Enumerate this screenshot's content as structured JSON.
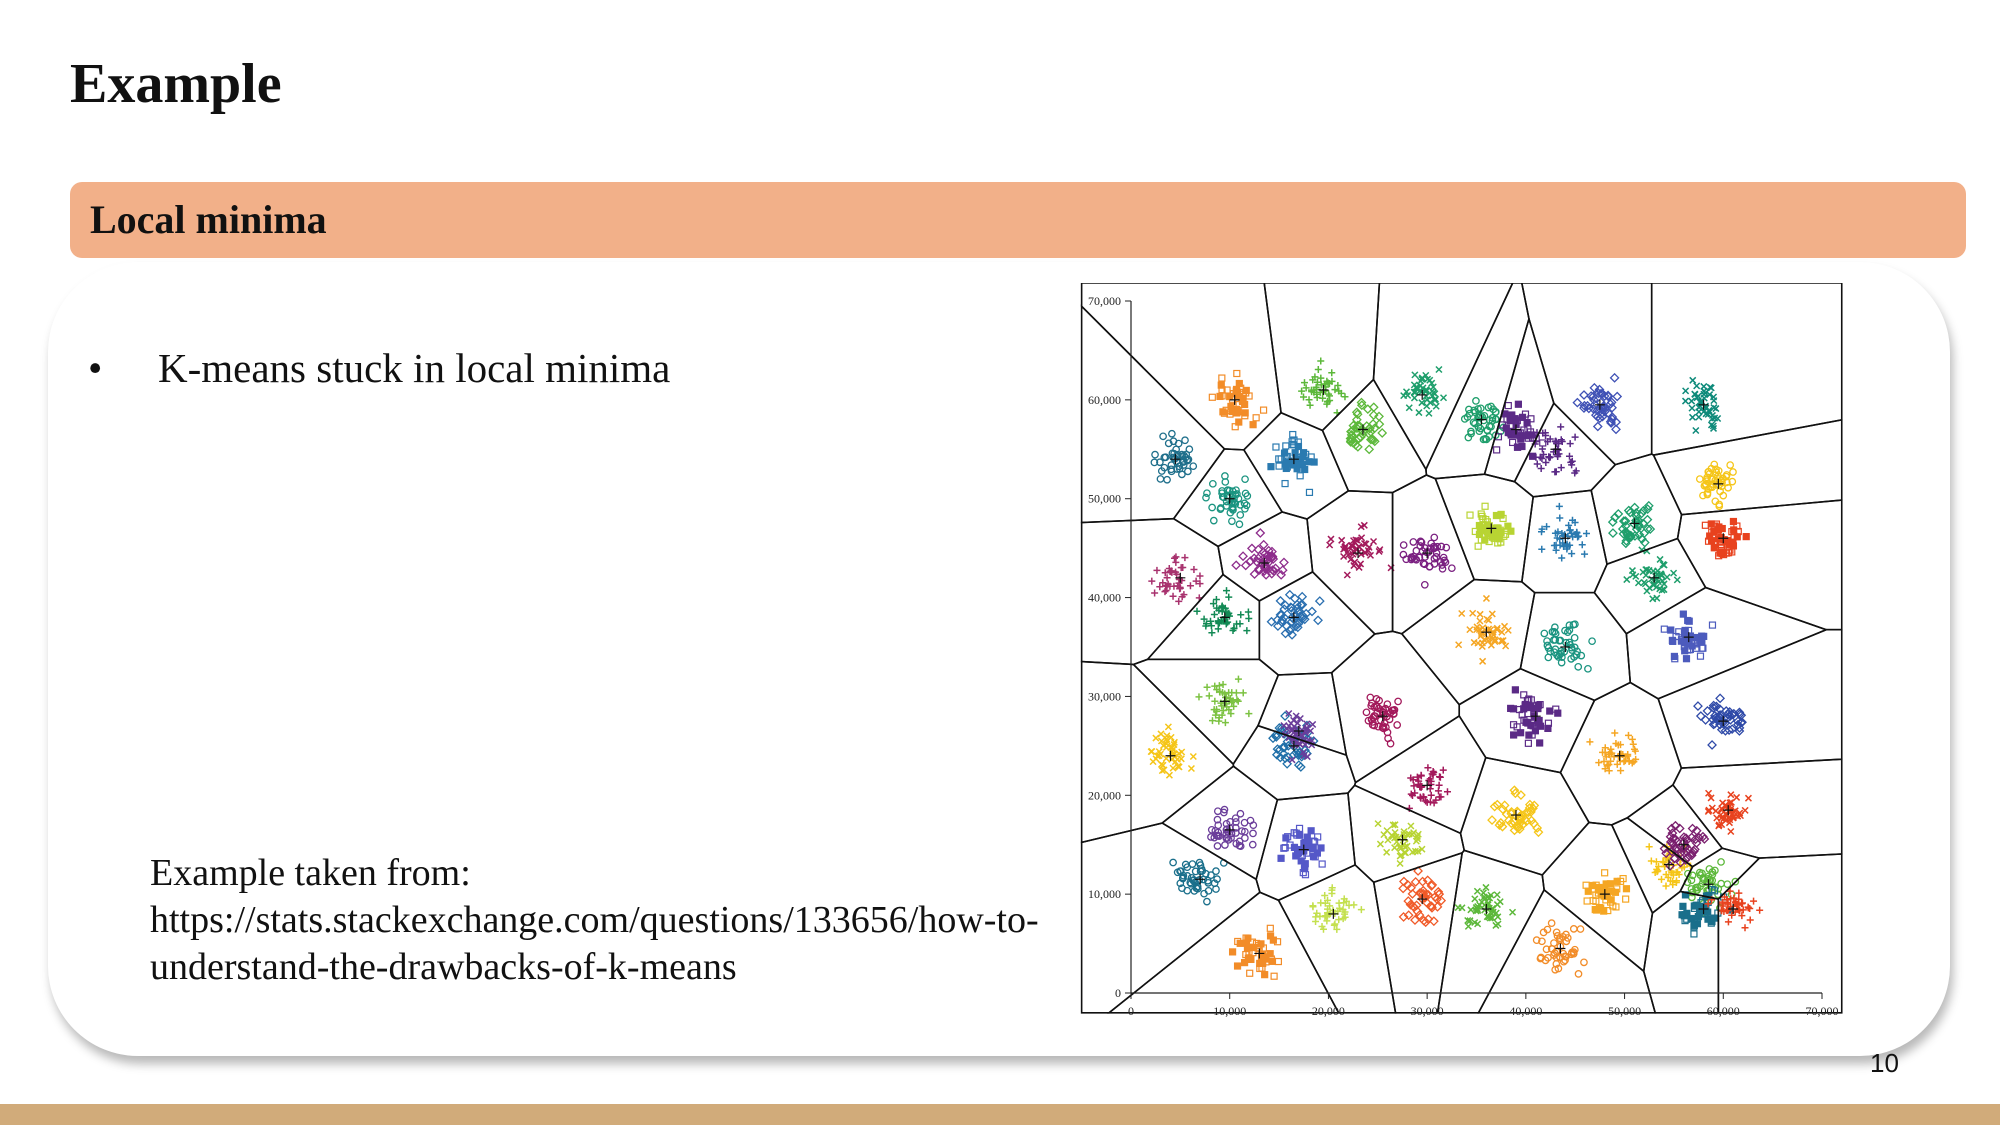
{
  "slide": {
    "title": "Example",
    "banner": "Local minima",
    "bullet": "K-means stuck in local minima",
    "bullet_symbol": "•",
    "source_lines": [
      "Example taken from:",
      "https://stats.stackexchange.com/questions/133656/how-to-",
      "understand-the-drawbacks-of-k-means"
    ],
    "page_number": "10"
  },
  "colors": {
    "banner": "#f2b089",
    "footer": "#d1ab7a"
  },
  "chart_data": {
    "type": "scatter",
    "title": "",
    "xlabel": "",
    "ylabel": "",
    "xlim": [
      0,
      70000
    ],
    "ylim": [
      0,
      70000
    ],
    "xticks": [
      "0",
      "10,000",
      "20,000",
      "30,000",
      "40,000",
      "50,000",
      "60,000",
      "70,000"
    ],
    "yticks": [
      "0",
      "10,000",
      "20,000",
      "30,000",
      "40,000",
      "50,000",
      "60,000",
      "70,000"
    ],
    "grid": false,
    "legend": "none",
    "overlay": "voronoi cell boundaries around each centroid",
    "clusters": [
      {
        "x": 4500,
        "y": 54000,
        "color": "#1f6f8b"
      },
      {
        "x": 10500,
        "y": 60000,
        "color": "#f28c28"
      },
      {
        "x": 19500,
        "y": 61000,
        "color": "#5cb83a"
      },
      {
        "x": 23500,
        "y": 57000,
        "color": "#5cb83a"
      },
      {
        "x": 29500,
        "y": 60500,
        "color": "#1e9e6b"
      },
      {
        "x": 35500,
        "y": 58000,
        "color": "#1e9e6b"
      },
      {
        "x": 39000,
        "y": 57000,
        "color": "#5b2a86"
      },
      {
        "x": 43000,
        "y": 55000,
        "color": "#5b2a86"
      },
      {
        "x": 47500,
        "y": 59500,
        "color": "#3f51b5"
      },
      {
        "x": 58000,
        "y": 59500,
        "color": "#0e8a7a"
      },
      {
        "x": 10000,
        "y": 50000,
        "color": "#1a9480"
      },
      {
        "x": 16500,
        "y": 54000,
        "color": "#2a7ab0"
      },
      {
        "x": 5000,
        "y": 42000,
        "color": "#a8326e"
      },
      {
        "x": 13500,
        "y": 43500,
        "color": "#8e2d8c"
      },
      {
        "x": 23000,
        "y": 44500,
        "color": "#a3195b"
      },
      {
        "x": 30000,
        "y": 44500,
        "color": "#7a1f80"
      },
      {
        "x": 36500,
        "y": 47000,
        "color": "#b8d433"
      },
      {
        "x": 44000,
        "y": 46000,
        "color": "#2a7ab0"
      },
      {
        "x": 51000,
        "y": 47500,
        "color": "#1e9e6b"
      },
      {
        "x": 53000,
        "y": 42000,
        "color": "#1e9e6b"
      },
      {
        "x": 59500,
        "y": 51500,
        "color": "#f5c518"
      },
      {
        "x": 60000,
        "y": 46000,
        "color": "#e8421e"
      },
      {
        "x": 9500,
        "y": 38000,
        "color": "#138a55"
      },
      {
        "x": 16500,
        "y": 38000,
        "color": "#2a6fb0"
      },
      {
        "x": 36000,
        "y": 36500,
        "color": "#f5a623"
      },
      {
        "x": 44000,
        "y": 35000,
        "color": "#1a9480"
      },
      {
        "x": 56500,
        "y": 36000,
        "color": "#4c5bbd"
      },
      {
        "x": 9500,
        "y": 29500,
        "color": "#7cc242"
      },
      {
        "x": 16500,
        "y": 25000,
        "color": "#1f6fa8"
      },
      {
        "x": 17000,
        "y": 26500,
        "color": "#6a3d9a"
      },
      {
        "x": 25500,
        "y": 28000,
        "color": "#a3195b"
      },
      {
        "x": 41000,
        "y": 28000,
        "color": "#5b2a86"
      },
      {
        "x": 49500,
        "y": 24000,
        "color": "#f5a623"
      },
      {
        "x": 60000,
        "y": 27500,
        "color": "#2f4aa8"
      },
      {
        "x": 4000,
        "y": 24000,
        "color": "#f5c518"
      },
      {
        "x": 10000,
        "y": 16500,
        "color": "#6a3d9a"
      },
      {
        "x": 17500,
        "y": 14500,
        "color": "#5558c8"
      },
      {
        "x": 30000,
        "y": 21000,
        "color": "#a3195b"
      },
      {
        "x": 39000,
        "y": 18000,
        "color": "#f5c518"
      },
      {
        "x": 27500,
        "y": 15500,
        "color": "#b8d433"
      },
      {
        "x": 7000,
        "y": 11500,
        "color": "#1a6f8b"
      },
      {
        "x": 13000,
        "y": 4000,
        "color": "#f28c28"
      },
      {
        "x": 20500,
        "y": 8000,
        "color": "#c4e04f"
      },
      {
        "x": 29500,
        "y": 9500,
        "color": "#f05a28"
      },
      {
        "x": 36000,
        "y": 8500,
        "color": "#5cb83a"
      },
      {
        "x": 43500,
        "y": 4500,
        "color": "#f28c28"
      },
      {
        "x": 48000,
        "y": 10000,
        "color": "#f5a623"
      },
      {
        "x": 54500,
        "y": 13000,
        "color": "#f5c518"
      },
      {
        "x": 56000,
        "y": 15000,
        "color": "#7a1f6e"
      },
      {
        "x": 60500,
        "y": 18500,
        "color": "#e8421e"
      },
      {
        "x": 58500,
        "y": 11000,
        "color": "#5cb83a"
      },
      {
        "x": 58000,
        "y": 8500,
        "color": "#1a6f8b"
      },
      {
        "x": 61000,
        "y": 8500,
        "color": "#e8421e"
      }
    ]
  }
}
